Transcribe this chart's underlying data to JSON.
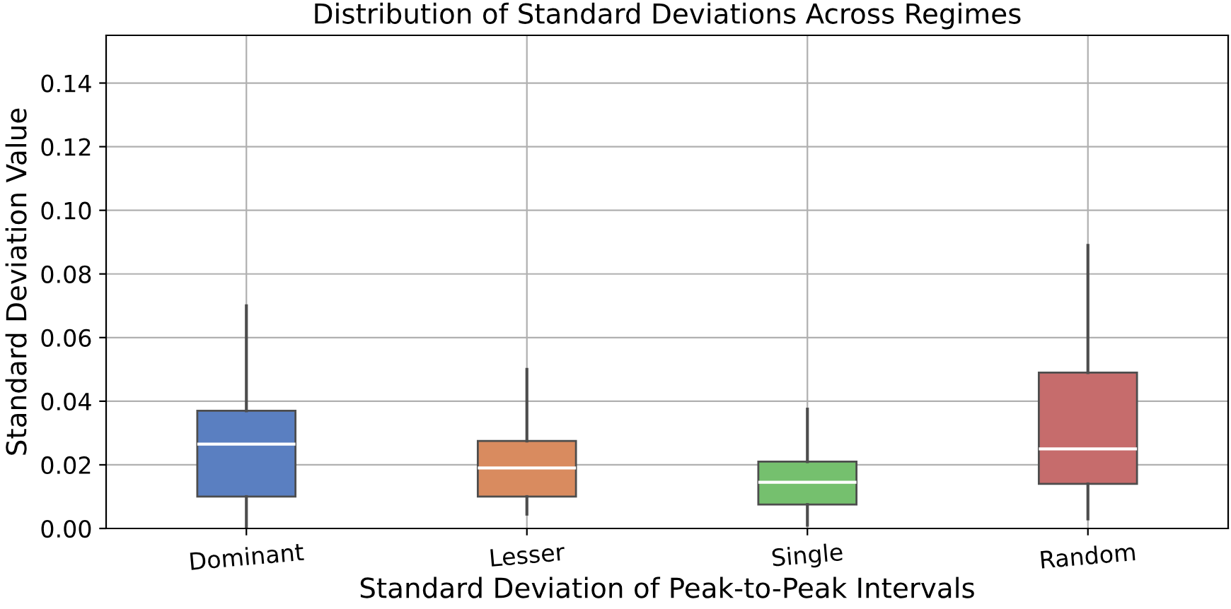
{
  "chart_data": {
    "type": "box",
    "title": "Distribution of Standard Deviations Across Regimes",
    "xlabel": "Standard Deviation of Peak-to-Peak Intervals",
    "ylabel": "Standard Deviation Value",
    "categories": [
      "Dominant",
      "Lesser",
      "Single",
      "Random"
    ],
    "colors": [
      "#5a7fc1",
      "#d98b5f",
      "#75c06e",
      "#c66c6c"
    ],
    "boxes": [
      {
        "low": 0.0,
        "q1": 0.01,
        "median": 0.0265,
        "q3": 0.037,
        "high": 0.07
      },
      {
        "low": 0.0045,
        "q1": 0.01,
        "median": 0.019,
        "q3": 0.0275,
        "high": 0.05
      },
      {
        "low": 0.001,
        "q1": 0.0075,
        "median": 0.0145,
        "q3": 0.021,
        "high": 0.0375
      },
      {
        "low": 0.003,
        "q1": 0.014,
        "median": 0.025,
        "q3": 0.049,
        "high": 0.089
      }
    ],
    "ylim": [
      0,
      0.155
    ],
    "yticks": [
      {
        "value": 0,
        "label": "0.00"
      },
      {
        "value": 0.02,
        "label": "0.02"
      },
      {
        "value": 0.04,
        "label": "0.04"
      },
      {
        "value": 0.06,
        "label": "0.06"
      },
      {
        "value": 0.08,
        "label": "0.08"
      },
      {
        "value": 0.1,
        "label": "0.10"
      },
      {
        "value": 0.12,
        "label": "0.12"
      },
      {
        "value": 0.14,
        "label": "0.14"
      }
    ],
    "grid": true
  }
}
